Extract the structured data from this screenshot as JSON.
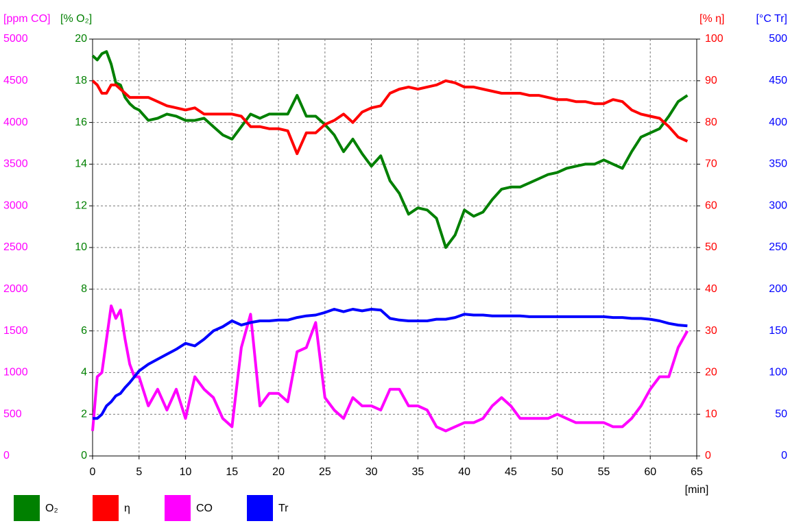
{
  "chart_data": {
    "type": "line",
    "x_label": "[min]",
    "x": [
      0,
      0.5,
      1,
      1.5,
      2,
      2.5,
      3,
      3.5,
      4,
      4.5,
      5,
      6,
      7,
      8,
      9,
      10,
      11,
      12,
      13,
      14,
      15,
      16,
      17,
      18,
      19,
      20,
      21,
      22,
      23,
      24,
      25,
      26,
      27,
      28,
      29,
      30,
      31,
      32,
      33,
      34,
      35,
      36,
      37,
      38,
      39,
      40,
      41,
      42,
      43,
      44,
      45,
      46,
      47,
      48,
      49,
      50,
      51,
      52,
      53,
      54,
      55,
      56,
      57,
      58,
      59,
      60,
      61,
      62,
      63,
      64
    ],
    "xlim": [
      0,
      65
    ],
    "xticks": [
      0,
      5,
      10,
      15,
      20,
      25,
      30,
      35,
      40,
      45,
      50,
      55,
      60,
      65
    ],
    "grid": true,
    "y_axes": [
      {
        "title": "[ppm CO]",
        "color": "#ff00ff",
        "lim": [
          0,
          5000
        ],
        "ticks": [
          0,
          500,
          1000,
          1500,
          2000,
          2500,
          3000,
          3500,
          4000,
          4500,
          5000
        ]
      },
      {
        "title": "[% O₂]",
        "color": "#008000",
        "lim": [
          0,
          20
        ],
        "ticks": [
          0,
          2,
          4,
          6,
          8,
          10,
          12,
          14,
          16,
          18,
          20
        ]
      },
      {
        "title": "[% η]",
        "color": "#ff0000",
        "lim": [
          0,
          100
        ],
        "ticks": [
          0,
          10,
          20,
          30,
          40,
          50,
          60,
          70,
          80,
          90,
          100
        ]
      },
      {
        "title": "[°C Tr]",
        "color": "#0000ff",
        "lim": [
          0,
          500
        ],
        "ticks": [
          0,
          50,
          100,
          150,
          200,
          250,
          300,
          350,
          400,
          450,
          500
        ]
      }
    ],
    "series": [
      {
        "name": "O₂",
        "color": "#008000",
        "axis": 1,
        "values": [
          19.2,
          19.0,
          19.3,
          19.4,
          18.8,
          17.9,
          17.8,
          17.2,
          16.9,
          16.7,
          16.6,
          16.1,
          16.2,
          16.4,
          16.3,
          16.1,
          16.1,
          16.2,
          15.8,
          15.4,
          15.2,
          15.8,
          16.4,
          16.2,
          16.4,
          16.4,
          16.4,
          17.3,
          16.3,
          16.3,
          15.9,
          15.4,
          14.6,
          15.2,
          14.5,
          13.9,
          14.4,
          13.2,
          12.6,
          11.6,
          11.9,
          11.8,
          11.4,
          10.0,
          10.6,
          11.8,
          11.5,
          11.7,
          12.3,
          12.8,
          12.9,
          12.9,
          13.1,
          13.3,
          13.5,
          13.6,
          13.8,
          13.9,
          14.0,
          14.0,
          14.2,
          14.0,
          13.8,
          14.6,
          15.3,
          15.5,
          15.7,
          16.3,
          17.0,
          17.3
        ]
      },
      {
        "name": "η",
        "color": "#ff0000",
        "axis": 2,
        "values": [
          90,
          89,
          87,
          87,
          89,
          89,
          88,
          87,
          86,
          86,
          86,
          86,
          85,
          84,
          83.5,
          83,
          83.5,
          82,
          82,
          82,
          82,
          81.5,
          79,
          79,
          78.5,
          78.5,
          78,
          72.5,
          77.5,
          77.5,
          79.5,
          80.5,
          82,
          80,
          82.5,
          83.5,
          84,
          87,
          88,
          88.5,
          88,
          88.5,
          89,
          90,
          89.5,
          88.5,
          88.5,
          88,
          87.5,
          87,
          87,
          87,
          86.5,
          86.5,
          86,
          85.5,
          85.5,
          85,
          85,
          84.5,
          84.5,
          85.5,
          85,
          83,
          82,
          81.5,
          81,
          79,
          76.5,
          75.5
        ]
      },
      {
        "name": "CO",
        "color": "#ff00ff",
        "axis": 0,
        "values": [
          300,
          950,
          1000,
          1400,
          1800,
          1650,
          1750,
          1400,
          1100,
          950,
          950,
          600,
          800,
          550,
          800,
          450,
          950,
          800,
          700,
          450,
          350,
          1300,
          1700,
          600,
          750,
          750,
          650,
          1250,
          1300,
          1600,
          700,
          550,
          450,
          700,
          600,
          600,
          550,
          800,
          800,
          600,
          600,
          550,
          350,
          300,
          350,
          400,
          400,
          450,
          600,
          700,
          600,
          450,
          450,
          450,
          450,
          500,
          450,
          400,
          400,
          400,
          400,
          350,
          350,
          450,
          600,
          800,
          950,
          950,
          1300,
          1500
        ]
      },
      {
        "name": "Tr",
        "color": "#0000ff",
        "axis": 3,
        "values": [
          45,
          45,
          50,
          60,
          65,
          72,
          75,
          82,
          88,
          95,
          102,
          110,
          116,
          122,
          128,
          135,
          132,
          140,
          150,
          155,
          162,
          157,
          160,
          162,
          162,
          163,
          163,
          166,
          168,
          169,
          172,
          176,
          173,
          176,
          174,
          176,
          175,
          165,
          163,
          162,
          162,
          162,
          164,
          164,
          166,
          170,
          169,
          169,
          168,
          168,
          168,
          168,
          167,
          167,
          167,
          167,
          167,
          167,
          167,
          167,
          167,
          166,
          166,
          165,
          165,
          164,
          162,
          159,
          157,
          156
        ]
      }
    ]
  }
}
